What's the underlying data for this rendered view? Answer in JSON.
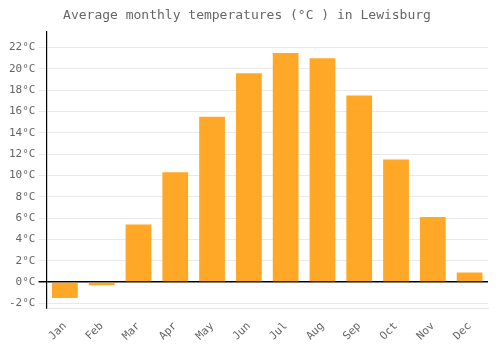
{
  "chart_data": {
    "type": "bar",
    "title": "Average monthly temperatures (°C ) in Lewisburg",
    "categories": [
      "Jan",
      "Feb",
      "Mar",
      "Apr",
      "May",
      "Jun",
      "Jul",
      "Aug",
      "Sep",
      "Oct",
      "Nov",
      "Dec"
    ],
    "values": [
      -1.5,
      -0.3,
      5.4,
      10.3,
      15.5,
      19.6,
      21.5,
      21.0,
      17.5,
      11.5,
      6.1,
      0.9
    ],
    "color": "#FFA726",
    "ylim": [
      -2.5,
      23.5
    ],
    "yticks": [
      {
        "value": -2,
        "label": "-2°C"
      },
      {
        "value": 0,
        "label": "0°C"
      },
      {
        "value": 2,
        "label": "2°C"
      },
      {
        "value": 4,
        "label": "4°C"
      },
      {
        "value": 6,
        "label": "6°C"
      },
      {
        "value": 8,
        "label": "8°C"
      },
      {
        "value": 10,
        "label": "10°C"
      },
      {
        "value": 12,
        "label": "12°C"
      },
      {
        "value": 14,
        "label": "14°C"
      },
      {
        "value": 16,
        "label": "16°C"
      },
      {
        "value": 18,
        "label": "18°C"
      },
      {
        "value": 20,
        "label": "20°C"
      },
      {
        "value": 22,
        "label": "22°C"
      }
    ],
    "grid": true
  }
}
